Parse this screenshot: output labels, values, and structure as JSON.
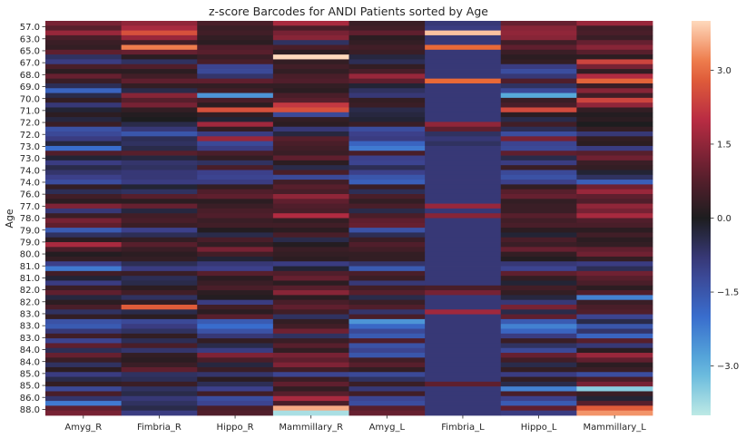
{
  "chart_data": {
    "type": "heatmap",
    "title": "z-score Barcodes for ANDI Patients sorted by Age",
    "ylabel": "Age",
    "xlabel": "",
    "columns": [
      "Amyg_R",
      "Fimbria_R",
      "Hippo_R",
      "Mammillary_R",
      "Amyg_L",
      "Fimbria_L",
      "Hippo_L",
      "Mammillary_L"
    ],
    "y_tick_labels": [
      "57.0",
      "63.0",
      "65.0",
      "67.0",
      "68.0",
      "69.0",
      "70.0",
      "71.0",
      "72.0",
      "72.0",
      "73.0",
      "73.0",
      "74.0",
      "74.0",
      "76.0",
      "77.0",
      "78.0",
      "79.0",
      "79.0",
      "80.0",
      "81.0",
      "81.0",
      "82.0",
      "82.0",
      "83.0",
      "83.0",
      "83.0",
      "84.0",
      "84.0",
      "85.0",
      "85.0",
      "86.0",
      "88.0"
    ],
    "colorbar": {
      "vmin": -4.0,
      "vmax": 4.0,
      "ticks": [
        3.0,
        1.5,
        0.0,
        -1.5,
        -3.0
      ],
      "tick_labels": [
        "3.0",
        "1.5",
        "0.0",
        "−1.5",
        "−3.0"
      ]
    },
    "values": [
      [
        1.2,
        1.5,
        0.6,
        1.8,
        0.4,
        -0.8,
        1.0,
        1.6
      ],
      [
        0.8,
        1.8,
        0.4,
        0.6,
        0.5,
        -0.9,
        1.4,
        0.5
      ],
      [
        1.6,
        2.6,
        0.5,
        1.2,
        0.9,
        3.8,
        1.5,
        0.6
      ],
      [
        0.6,
        1.6,
        0.3,
        1.4,
        0.2,
        -0.8,
        1.4,
        0.4
      ],
      [
        0.4,
        0.5,
        0.2,
        -0.6,
        0.3,
        -0.8,
        0.5,
        1.0
      ],
      [
        0.3,
        3.2,
        0.7,
        0.6,
        0.5,
        3.0,
        0.9,
        1.4
      ],
      [
        0.9,
        1.0,
        0.8,
        0.2,
        0.4,
        -0.8,
        0.4,
        0.8
      ],
      [
        -0.6,
        0.2,
        0.4,
        4.0,
        -0.3,
        -0.8,
        0.2,
        0.2
      ],
      [
        -0.9,
        -0.6,
        0.6,
        0.3,
        -0.5,
        -0.8,
        0.3,
        2.4
      ],
      [
        0.6,
        0.7,
        -1.1,
        0.5,
        0.3,
        -0.8,
        -0.9,
        1.2
      ],
      [
        0.2,
        0.2,
        -1.2,
        0.3,
        0.6,
        -0.8,
        -1.3,
        0.3
      ],
      [
        1.0,
        0.5,
        -0.7,
        0.6,
        1.6,
        -0.8,
        -0.8,
        1.9
      ],
      [
        0.4,
        0.9,
        0.9,
        0.7,
        0.9,
        3.0,
        0.7,
        2.9
      ],
      [
        -0.5,
        0.3,
        0.3,
        0.3,
        -0.2,
        -0.8,
        -0.6,
        0.4
      ],
      [
        -1.8,
        -0.4,
        0.5,
        0.2,
        -0.6,
        -0.8,
        -1.2,
        1.4
      ],
      [
        -0.4,
        1.4,
        -2.6,
        0.6,
        -0.8,
        -0.8,
        -2.9,
        0.5
      ],
      [
        0.3,
        0.8,
        0.6,
        0.8,
        0.3,
        -0.8,
        0.4,
        2.4
      ],
      [
        -0.8,
        1.2,
        0.2,
        2.2,
        0.4,
        -0.8,
        0.6,
        1.5
      ],
      [
        -0.2,
        0.3,
        2.6,
        2.6,
        -0.4,
        -0.8,
        2.5,
        0.3
      ],
      [
        0.2,
        0.1,
        0.3,
        -1.2,
        -0.3,
        -0.8,
        0.2,
        0.1
      ],
      [
        -0.3,
        0.0,
        -0.2,
        0.3,
        -0.2,
        -0.8,
        -0.4,
        0.2
      ],
      [
        0.4,
        -0.4,
        1.7,
        0.2,
        0.4,
        1.5,
        0.5,
        0.0
      ],
      [
        -1.4,
        -0.8,
        0.3,
        -0.8,
        -1.3,
        0.9,
        -0.5,
        0.3
      ],
      [
        -1.2,
        -1.5,
        -0.9,
        -0.3,
        -1.0,
        -0.6,
        -1.3,
        -0.8
      ],
      [
        -0.9,
        -0.5,
        1.6,
        0.8,
        -0.9,
        -0.8,
        1.2,
        0.3
      ],
      [
        -0.3,
        -0.6,
        -1.2,
        0.6,
        -1.8,
        -0.6,
        -1.1,
        0.2
      ],
      [
        -2.0,
        -0.4,
        -0.9,
        0.5,
        -2.2,
        -0.8,
        -1.2,
        -0.9
      ],
      [
        0.7,
        0.8,
        0.6,
        0.4,
        0.6,
        -0.8,
        0.9,
        0.8
      ],
      [
        -0.2,
        -0.3,
        0.3,
        0.9,
        -1.0,
        -0.8,
        -0.4,
        1.1
      ],
      [
        -0.9,
        -0.7,
        -0.6,
        0.2,
        -1.1,
        -0.8,
        -0.9,
        0.4
      ],
      [
        -0.4,
        -0.6,
        0.6,
        -0.4,
        -0.5,
        -0.8,
        0.4,
        0.3
      ],
      [
        -0.7,
        -0.8,
        -1.0,
        0.6,
        -1.0,
        -0.8,
        -1.2,
        -0.2
      ],
      [
        -1.0,
        -0.8,
        -1.1,
        -1.2,
        -1.5,
        -0.8,
        -1.4,
        -0.6
      ],
      [
        -1.3,
        -0.9,
        -0.9,
        0.5,
        -1.7,
        -0.8,
        -1.0,
        -1.7
      ],
      [
        0.3,
        -0.2,
        0.3,
        0.8,
        0.4,
        -0.8,
        0.3,
        1.1
      ],
      [
        -0.5,
        -0.6,
        0.7,
        0.6,
        -0.5,
        -0.8,
        0.8,
        1.6
      ],
      [
        0.5,
        0.8,
        0.9,
        1.5,
        0.6,
        -0.8,
        1.0,
        0.9
      ],
      [
        0.2,
        0.2,
        0.2,
        0.9,
        0.3,
        -0.8,
        0.3,
        0.7
      ],
      [
        1.3,
        1.0,
        0.4,
        0.7,
        0.6,
        1.6,
        0.4,
        1.5
      ],
      [
        -0.8,
        -0.3,
        0.6,
        0.6,
        -0.4,
        -0.8,
        0.4,
        1.2
      ],
      [
        0.4,
        0.5,
        0.7,
        1.9,
        0.6,
        1.4,
        0.8,
        1.8
      ],
      [
        1.2,
        0.6,
        0.4,
        0.3,
        0.9,
        -0.8,
        0.5,
        0.7
      ],
      [
        0.9,
        0.4,
        0.5,
        0.5,
        1.0,
        -0.8,
        0.6,
        0.6
      ],
      [
        -1.6,
        -1.0,
        0.1,
        0.2,
        -1.4,
        -0.8,
        0.2,
        0.2
      ],
      [
        -0.6,
        -0.5,
        -0.4,
        0.6,
        -0.5,
        -0.8,
        -0.2,
        0.5
      ],
      [
        0.2,
        0.3,
        0.6,
        -0.4,
        0.4,
        -0.8,
        0.6,
        0.2
      ],
      [
        1.8,
        0.8,
        0.3,
        0.1,
        0.7,
        -0.8,
        0.4,
        0.3
      ],
      [
        0.6,
        0.4,
        1.2,
        0.4,
        0.5,
        -0.8,
        1.0,
        0.9
      ],
      [
        0.1,
        0.2,
        0.5,
        0.3,
        0.3,
        -0.8,
        0.3,
        1.1
      ],
      [
        0.3,
        0.3,
        -0.2,
        0.2,
        0.3,
        -0.8,
        0.1,
        0.3
      ],
      [
        -1.0,
        -0.5,
        -0.8,
        -0.9,
        -0.7,
        -0.8,
        -0.8,
        -0.9
      ],
      [
        -2.2,
        -0.9,
        -1.0,
        -0.2,
        -1.6,
        -0.8,
        -1.1,
        -0.5
      ],
      [
        0.5,
        0.4,
        0.8,
        0.7,
        0.6,
        -0.8,
        0.9,
        1.1
      ],
      [
        -0.2,
        -0.5,
        0.2,
        1.0,
        0.4,
        -0.8,
        0.3,
        0.8
      ],
      [
        -0.9,
        -0.4,
        0.4,
        0.2,
        -0.8,
        -0.8,
        -0.2,
        0.6
      ],
      [
        0.4,
        0.2,
        0.6,
        0.8,
        0.5,
        0.6,
        0.5,
        0.2
      ],
      [
        0.9,
        0.5,
        0.2,
        1.4,
        0.8,
        1.2,
        0.3,
        0.7
      ],
      [
        -0.3,
        -0.6,
        0.1,
        0.2,
        -0.4,
        -0.8,
        -0.3,
        -2.3
      ],
      [
        0.2,
        0.3,
        -0.9,
        0.6,
        0.4,
        -0.8,
        -0.8,
        0.4
      ],
      [
        0.6,
        2.8,
        0.5,
        0.9,
        0.7,
        -0.8,
        1.2,
        0.6
      ],
      [
        -0.6,
        -0.4,
        0.2,
        0.5,
        -0.7,
        1.7,
        -0.4,
        0.7
      ],
      [
        0.3,
        0.2,
        0.8,
        -0.6,
        0.6,
        -0.8,
        0.9,
        -1.1
      ],
      [
        -1.4,
        -1.2,
        -1.6,
        0.3,
        -2.6,
        -0.8,
        -1.6,
        -0.4
      ],
      [
        -1.6,
        -0.9,
        -2.0,
        0.5,
        -1.9,
        -0.8,
        -2.3,
        -1.5
      ],
      [
        -0.8,
        -0.6,
        -1.4,
        1.1,
        -1.2,
        -0.8,
        -1.8,
        -0.7
      ],
      [
        0.5,
        0.3,
        -0.8,
        -0.6,
        -1.6,
        -0.8,
        -0.9,
        -1.8
      ],
      [
        -1.1,
        -0.5,
        0.3,
        0.4,
        0.7,
        -0.8,
        0.4,
        0.8
      ],
      [
        0.9,
        0.6,
        -0.4,
        0.8,
        -1.4,
        -0.8,
        -0.6,
        -0.8
      ],
      [
        -0.5,
        -0.7,
        -0.9,
        0.3,
        -1.1,
        -0.8,
        -1.2,
        0.2
      ],
      [
        1.0,
        0.3,
        1.3,
        1.2,
        -1.5,
        -0.8,
        1.0,
        1.6
      ],
      [
        0.4,
        0.2,
        0.6,
        0.9,
        0.5,
        -0.8,
        0.5,
        0.9
      ],
      [
        -0.6,
        0.4,
        -0.3,
        1.3,
        0.8,
        -0.8,
        -0.4,
        0.2
      ],
      [
        0.2,
        0.9,
        0.4,
        0.5,
        0.3,
        -0.8,
        0.3,
        0.4
      ],
      [
        -0.9,
        -0.6,
        -0.7,
        -1.1,
        -1.2,
        -0.8,
        -0.9,
        -1.3
      ],
      [
        -0.4,
        -0.5,
        0.2,
        0.4,
        -0.6,
        -0.8,
        0.3,
        0.6
      ],
      [
        0.3,
        0.4,
        -0.5,
        0.9,
        0.4,
        0.9,
        -0.4,
        1.2
      ],
      [
        -1.2,
        -0.6,
        -1.0,
        0.3,
        -0.8,
        -0.8,
        -2.3,
        -3.5
      ],
      [
        0.6,
        -0.4,
        0.5,
        0.8,
        0.5,
        -0.8,
        0.6,
        0.4
      ],
      [
        -0.7,
        -0.8,
        -1.3,
        1.8,
        -1.1,
        -0.8,
        -1.0,
        -0.2
      ],
      [
        -2.2,
        -0.6,
        -1.1,
        0.6,
        -1.3,
        -0.8,
        -1.6,
        0.8
      ],
      [
        0.9,
        -0.4,
        0.6,
        3.6,
        0.8,
        -0.8,
        0.9,
        2.8
      ],
      [
        1.2,
        -0.9,
        0.7,
        -3.8,
        1.0,
        -0.8,
        -0.9,
        3.4
      ]
    ]
  }
}
